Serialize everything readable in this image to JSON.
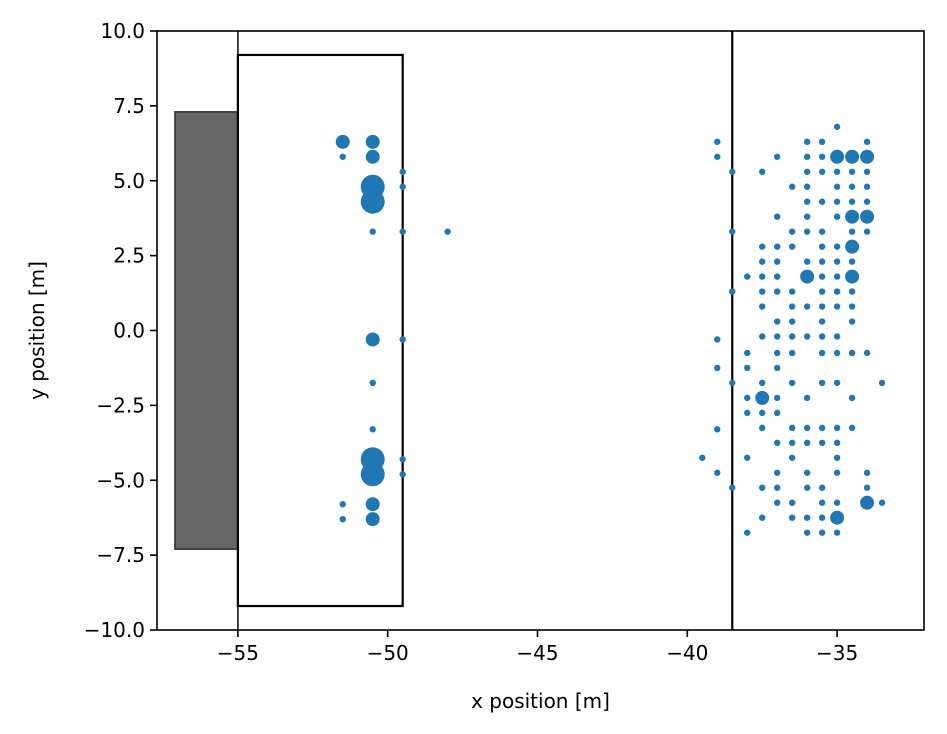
{
  "chart_data": {
    "type": "scatter",
    "xlabel": "x position [m]",
    "ylabel": "y position [m]",
    "xlim": [
      -57.7,
      -32.1
    ],
    "ylim": [
      -10,
      10
    ],
    "xticks": [
      -55,
      -50,
      -45,
      -40,
      -35
    ],
    "yticks": [
      -10,
      -7.5,
      -5,
      -2.5,
      0,
      2.5,
      5,
      7.5,
      10
    ],
    "xtick_labels": [
      "−55",
      "−50",
      "−45",
      "−40",
      "−35"
    ],
    "ytick_labels": [
      "−10.0",
      "−7.5",
      "−5.0",
      "−2.5",
      "0.0",
      "2.5",
      "5.0",
      "7.5",
      "10.0"
    ],
    "grid": false,
    "colors": {
      "points": "#1f77b4",
      "wall_fill": "#666666",
      "wall_edge": "#333333",
      "outline": "#000000"
    },
    "shapes": [
      {
        "kind": "filled-rect",
        "x0": -57.1,
        "x1": -55.0,
        "y0": -7.3,
        "y1": 7.3
      },
      {
        "kind": "vline",
        "x": -55.0
      },
      {
        "kind": "rect",
        "x0": -55.0,
        "x1": -49.5,
        "y0": -9.2,
        "y1": 9.2
      },
      {
        "kind": "vline",
        "x": -38.5
      }
    ],
    "points": [
      [
        -51.5,
        6.3,
        "m"
      ],
      [
        -50.5,
        6.3,
        "m"
      ],
      [
        -51.5,
        5.8,
        "s"
      ],
      [
        -50.5,
        5.8,
        "m"
      ],
      [
        -49.5,
        5.3,
        "s"
      ],
      [
        -50.5,
        4.8,
        "l"
      ],
      [
        -49.5,
        4.8,
        "s"
      ],
      [
        -50.5,
        4.3,
        "l"
      ],
      [
        -50.5,
        3.3,
        "s"
      ],
      [
        -49.5,
        3.3,
        "s"
      ],
      [
        -48.0,
        3.3,
        "s"
      ],
      [
        -50.5,
        -0.3,
        "m"
      ],
      [
        -49.5,
        -0.3,
        "s"
      ],
      [
        -50.5,
        -1.75,
        "s"
      ],
      [
        -50.5,
        -3.3,
        "s"
      ],
      [
        -50.5,
        -4.3,
        "l"
      ],
      [
        -49.5,
        -4.3,
        "s"
      ],
      [
        -50.5,
        -4.8,
        "l"
      ],
      [
        -49.5,
        -4.8,
        "s"
      ],
      [
        -51.5,
        -5.8,
        "s"
      ],
      [
        -50.5,
        -5.8,
        "m"
      ],
      [
        -51.5,
        -6.3,
        "s"
      ],
      [
        -50.5,
        -6.3,
        "m"
      ],
      [
        -39.0,
        6.3,
        "s"
      ],
      [
        -39.0,
        5.8,
        "s"
      ],
      [
        -38.5,
        5.3,
        "s"
      ],
      [
        -38.5,
        3.3,
        "s"
      ],
      [
        -38.5,
        1.3,
        "s"
      ],
      [
        -39.0,
        -0.3,
        "s"
      ],
      [
        -39.0,
        -1.25,
        "s"
      ],
      [
        -38.5,
        -1.75,
        "s"
      ],
      [
        -39.0,
        -3.3,
        "s"
      ],
      [
        -39.5,
        -4.25,
        "s"
      ],
      [
        -39.0,
        -4.75,
        "s"
      ],
      [
        -38.5,
        -5.25,
        "s"
      ],
      [
        -35.0,
        6.8,
        "s"
      ],
      [
        -36.0,
        6.3,
        "s"
      ],
      [
        -35.5,
        6.3,
        "s"
      ],
      [
        -34.0,
        6.3,
        "s"
      ],
      [
        -37.0,
        5.8,
        "s"
      ],
      [
        -36.0,
        5.8,
        "s"
      ],
      [
        -35.5,
        5.8,
        "s"
      ],
      [
        -35.0,
        5.8,
        "m"
      ],
      [
        -34.5,
        5.8,
        "m"
      ],
      [
        -34.0,
        5.8,
        "m"
      ],
      [
        -37.5,
        5.3,
        "s"
      ],
      [
        -36.0,
        5.3,
        "s"
      ],
      [
        -35.5,
        5.3,
        "s"
      ],
      [
        -35.0,
        5.3,
        "s"
      ],
      [
        -34.5,
        5.3,
        "s"
      ],
      [
        -34.0,
        5.3,
        "s"
      ],
      [
        -36.5,
        4.8,
        "s"
      ],
      [
        -36.0,
        4.8,
        "s"
      ],
      [
        -35.0,
        4.8,
        "s"
      ],
      [
        -34.5,
        4.8,
        "s"
      ],
      [
        -34.0,
        4.8,
        "s"
      ],
      [
        -36.0,
        4.3,
        "s"
      ],
      [
        -35.5,
        4.3,
        "s"
      ],
      [
        -35.0,
        4.3,
        "s"
      ],
      [
        -34.5,
        4.3,
        "s"
      ],
      [
        -34.0,
        4.3,
        "s"
      ],
      [
        -37.0,
        3.8,
        "s"
      ],
      [
        -36.0,
        3.8,
        "s"
      ],
      [
        -35.0,
        3.8,
        "s"
      ],
      [
        -34.5,
        3.8,
        "m"
      ],
      [
        -34.0,
        3.8,
        "m"
      ],
      [
        -36.5,
        3.3,
        "s"
      ],
      [
        -36.0,
        3.3,
        "s"
      ],
      [
        -35.5,
        3.3,
        "s"
      ],
      [
        -34.5,
        3.3,
        "s"
      ],
      [
        -34.0,
        3.3,
        "s"
      ],
      [
        -37.5,
        2.8,
        "s"
      ],
      [
        -37.0,
        2.8,
        "s"
      ],
      [
        -36.5,
        2.8,
        "s"
      ],
      [
        -35.5,
        2.8,
        "s"
      ],
      [
        -35.0,
        2.8,
        "s"
      ],
      [
        -34.5,
        2.8,
        "m"
      ],
      [
        -37.5,
        2.3,
        "s"
      ],
      [
        -37.0,
        2.3,
        "s"
      ],
      [
        -36.0,
        2.3,
        "s"
      ],
      [
        -35.5,
        2.3,
        "s"
      ],
      [
        -35.0,
        2.3,
        "s"
      ],
      [
        -34.5,
        2.3,
        "s"
      ],
      [
        -38.0,
        1.8,
        "s"
      ],
      [
        -37.5,
        1.8,
        "s"
      ],
      [
        -37.0,
        1.8,
        "s"
      ],
      [
        -36.0,
        1.8,
        "m"
      ],
      [
        -35.5,
        1.8,
        "s"
      ],
      [
        -35.0,
        1.8,
        "s"
      ],
      [
        -34.5,
        1.8,
        "m"
      ],
      [
        -37.5,
        1.3,
        "s"
      ],
      [
        -37.0,
        1.3,
        "s"
      ],
      [
        -36.5,
        1.3,
        "s"
      ],
      [
        -35.5,
        1.3,
        "s"
      ],
      [
        -35.0,
        1.3,
        "s"
      ],
      [
        -34.5,
        1.3,
        "s"
      ],
      [
        -37.5,
        0.8,
        "s"
      ],
      [
        -36.5,
        0.8,
        "s"
      ],
      [
        -36.0,
        0.8,
        "s"
      ],
      [
        -35.5,
        0.8,
        "s"
      ],
      [
        -35.0,
        0.8,
        "s"
      ],
      [
        -34.5,
        0.8,
        "s"
      ],
      [
        -37.0,
        0.3,
        "s"
      ],
      [
        -36.5,
        0.3,
        "s"
      ],
      [
        -35.5,
        0.3,
        "s"
      ],
      [
        -34.5,
        0.3,
        "s"
      ],
      [
        -37.5,
        -0.2,
        "s"
      ],
      [
        -37.0,
        -0.2,
        "s"
      ],
      [
        -36.5,
        -0.2,
        "s"
      ],
      [
        -36.0,
        -0.2,
        "s"
      ],
      [
        -35.5,
        -0.2,
        "s"
      ],
      [
        -35.0,
        -0.2,
        "s"
      ],
      [
        -38.0,
        -0.75,
        "s"
      ],
      [
        -37.0,
        -0.75,
        "s"
      ],
      [
        -36.5,
        -0.75,
        "s"
      ],
      [
        -35.5,
        -0.75,
        "s"
      ],
      [
        -35.0,
        -0.75,
        "s"
      ],
      [
        -34.5,
        -0.75,
        "s"
      ],
      [
        -34.0,
        -0.75,
        "s"
      ],
      [
        -38.0,
        -1.25,
        "s"
      ],
      [
        -37.0,
        -1.25,
        "s"
      ],
      [
        -37.5,
        -1.75,
        "s"
      ],
      [
        -36.5,
        -1.75,
        "s"
      ],
      [
        -35.5,
        -1.75,
        "s"
      ],
      [
        -35.0,
        -1.75,
        "s"
      ],
      [
        -33.5,
        -1.75,
        "s"
      ],
      [
        -38.0,
        -2.25,
        "s"
      ],
      [
        -37.5,
        -2.25,
        "m"
      ],
      [
        -37.0,
        -2.25,
        "s"
      ],
      [
        -36.0,
        -2.25,
        "s"
      ],
      [
        -34.5,
        -2.25,
        "s"
      ],
      [
        -38.0,
        -2.75,
        "s"
      ],
      [
        -37.5,
        -2.75,
        "s"
      ],
      [
        -37.0,
        -2.75,
        "s"
      ],
      [
        -37.5,
        -3.25,
        "s"
      ],
      [
        -36.5,
        -3.25,
        "s"
      ],
      [
        -36.0,
        -3.25,
        "s"
      ],
      [
        -35.5,
        -3.25,
        "s"
      ],
      [
        -35.0,
        -3.25,
        "s"
      ],
      [
        -34.5,
        -3.25,
        "s"
      ],
      [
        -37.0,
        -3.75,
        "s"
      ],
      [
        -36.5,
        -3.75,
        "s"
      ],
      [
        -36.0,
        -3.75,
        "s"
      ],
      [
        -35.5,
        -3.75,
        "s"
      ],
      [
        -35.0,
        -3.75,
        "s"
      ],
      [
        -38.0,
        -4.25,
        "s"
      ],
      [
        -36.5,
        -4.25,
        "s"
      ],
      [
        -35.0,
        -4.25,
        "s"
      ],
      [
        -37.0,
        -4.75,
        "s"
      ],
      [
        -36.0,
        -4.75,
        "s"
      ],
      [
        -35.0,
        -4.75,
        "s"
      ],
      [
        -34.0,
        -4.75,
        "s"
      ],
      [
        -37.5,
        -5.25,
        "s"
      ],
      [
        -37.0,
        -5.25,
        "s"
      ],
      [
        -36.0,
        -5.25,
        "s"
      ],
      [
        -35.5,
        -5.25,
        "s"
      ],
      [
        -34.0,
        -5.25,
        "s"
      ],
      [
        -37.0,
        -5.75,
        "s"
      ],
      [
        -36.5,
        -5.75,
        "s"
      ],
      [
        -35.5,
        -5.75,
        "s"
      ],
      [
        -35.0,
        -5.75,
        "s"
      ],
      [
        -34.0,
        -5.75,
        "m"
      ],
      [
        -33.5,
        -5.75,
        "s"
      ],
      [
        -37.5,
        -6.25,
        "s"
      ],
      [
        -36.5,
        -6.25,
        "s"
      ],
      [
        -36.0,
        -6.25,
        "s"
      ],
      [
        -35.5,
        -6.25,
        "s"
      ],
      [
        -35.0,
        -6.25,
        "m"
      ],
      [
        -38.0,
        -6.75,
        "s"
      ],
      [
        -36.0,
        -6.75,
        "s"
      ],
      [
        -35.5,
        -6.75,
        "s"
      ],
      [
        -35.0,
        -6.75,
        "s"
      ]
    ]
  }
}
